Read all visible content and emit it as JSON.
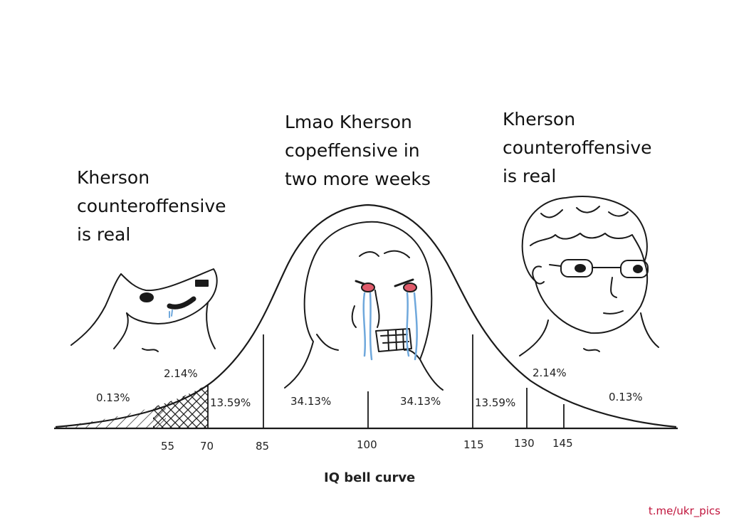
{
  "captions": {
    "left": {
      "lines": [
        "Kherson",
        "counteroffensive",
        "is real"
      ]
    },
    "middle": {
      "lines": [
        "Lmao Kherson",
        "copeffensive in",
        "two more weeks"
      ]
    },
    "right": {
      "lines": [
        "Kherson",
        "counteroffensive",
        "is real"
      ]
    }
  },
  "characters": {
    "left": "wojak-brainlet-icon",
    "middle": "crying-wojak-icon",
    "right": "glasses-wojak-icon"
  },
  "curve": {
    "region_labels": [
      "0.13%",
      "2.14%",
      "13.59%",
      "34.13%",
      "34.13%",
      "13.59%",
      "2.14%",
      "0.13%"
    ],
    "ticks": [
      "55",
      "70",
      "85",
      "100",
      "115",
      "130",
      "145"
    ],
    "xlabel": "IQ bell curve"
  },
  "watermark": {
    "text": "t.me/ukr_pics",
    "color": "#c0143c"
  },
  "colors": {
    "line": "#1a1a1a",
    "tear": "#6fa8dc",
    "eye_red": "#e05a6a"
  }
}
